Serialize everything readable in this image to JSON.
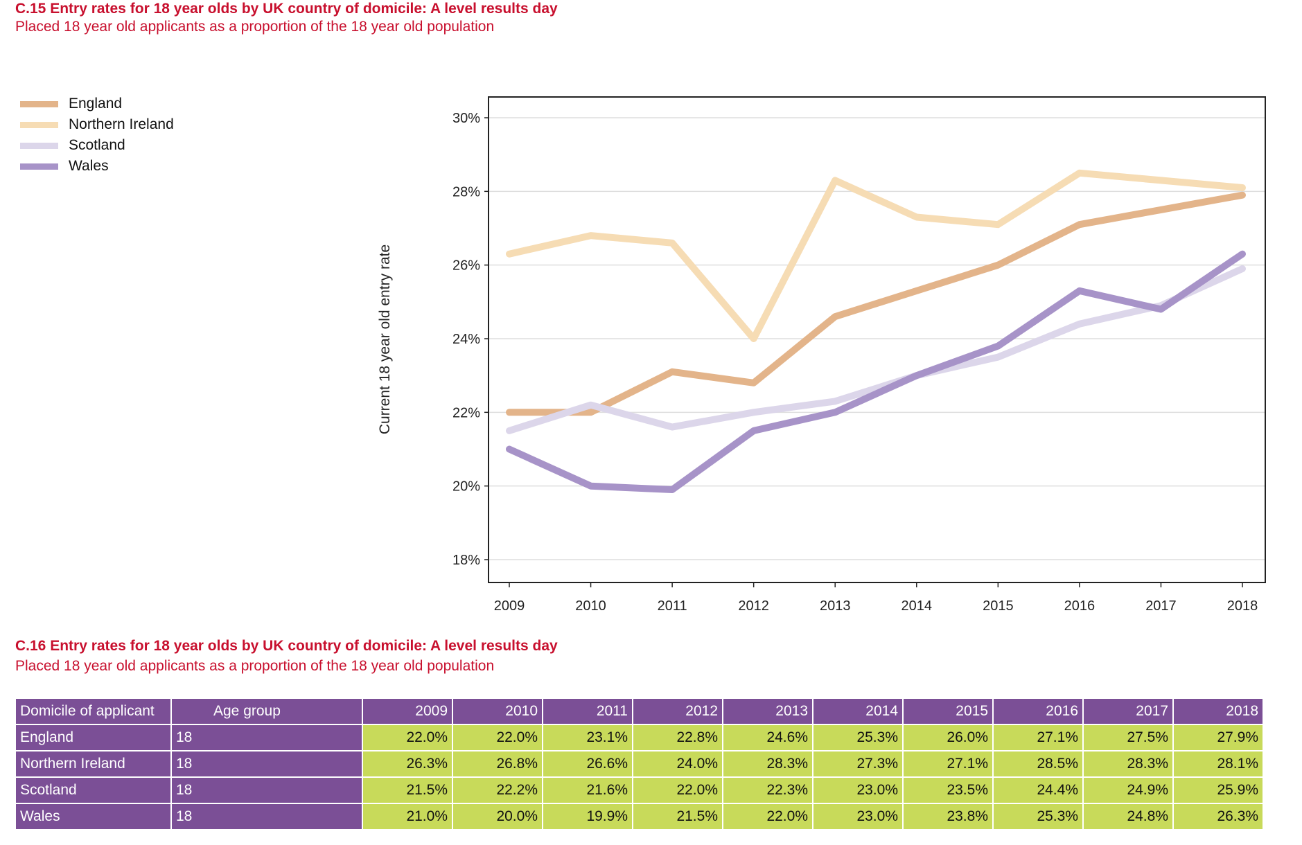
{
  "chart_c15": {
    "title": "C.15 Entry rates for 18 year olds by UK country of domicile: A level results day",
    "subtitle": "Placed 18 year old applicants as a proportion of the 18 year old population"
  },
  "chart_data": {
    "type": "line",
    "x": [
      "2009",
      "2010",
      "2011",
      "2012",
      "2013",
      "2014",
      "2015",
      "2016",
      "2017",
      "2018"
    ],
    "ylabel": "Current 18 year old entry rate",
    "xlabel": "",
    "ylim": [
      18,
      30
    ],
    "yticks": [
      18,
      20,
      22,
      24,
      26,
      28,
      30
    ],
    "ytick_labels": [
      "18%",
      "20%",
      "22%",
      "24%",
      "26%",
      "28%",
      "30%"
    ],
    "grid": true,
    "legend_position": "top-left",
    "series": [
      {
        "name": "England",
        "color": "#e3b48a",
        "values": [
          22.0,
          22.0,
          23.1,
          22.8,
          24.6,
          25.3,
          26.0,
          27.1,
          27.5,
          27.9
        ]
      },
      {
        "name": "Northern Ireland",
        "color": "#f6dcb4",
        "values": [
          26.3,
          26.8,
          26.6,
          24.0,
          28.3,
          27.3,
          27.1,
          28.5,
          28.3,
          28.1
        ]
      },
      {
        "name": "Scotland",
        "color": "#dcd6ea",
        "values": [
          21.5,
          22.2,
          21.6,
          22.0,
          22.3,
          23.0,
          23.5,
          24.4,
          24.9,
          25.9
        ]
      },
      {
        "name": "Wales",
        "color": "#a793c8",
        "values": [
          21.0,
          20.0,
          19.9,
          21.5,
          22.0,
          23.0,
          23.8,
          25.3,
          24.8,
          26.3
        ]
      }
    ]
  },
  "table_c16": {
    "title": "C.16 Entry rates for 18 year olds by UK country of domicile: A level results day",
    "subtitle": "Placed 18 year old applicants as a proportion of the 18 year old population",
    "headers": [
      "Domicile of applicant",
      "Age group",
      "2009",
      "2010",
      "2011",
      "2012",
      "2013",
      "2014",
      "2015",
      "2016",
      "2017",
      "2018"
    ],
    "rows": [
      {
        "name": "England",
        "age": "18",
        "values": [
          "22.0%",
          "22.0%",
          "23.1%",
          "22.8%",
          "24.6%",
          "25.3%",
          "26.0%",
          "27.1%",
          "27.5%",
          "27.9%"
        ]
      },
      {
        "name": "Northern Ireland",
        "age": "18",
        "values": [
          "26.3%",
          "26.8%",
          "26.6%",
          "24.0%",
          "28.3%",
          "27.3%",
          "27.1%",
          "28.5%",
          "28.3%",
          "28.1%"
        ]
      },
      {
        "name": "Scotland",
        "age": "18",
        "values": [
          "21.5%",
          "22.2%",
          "21.6%",
          "22.0%",
          "22.3%",
          "23.0%",
          "23.5%",
          "24.4%",
          "24.9%",
          "25.9%"
        ]
      },
      {
        "name": "Wales",
        "age": "18",
        "values": [
          "21.0%",
          "20.0%",
          "19.9%",
          "21.5%",
          "22.0%",
          "23.0%",
          "23.8%",
          "25.3%",
          "24.8%",
          "26.3%"
        ]
      }
    ]
  }
}
